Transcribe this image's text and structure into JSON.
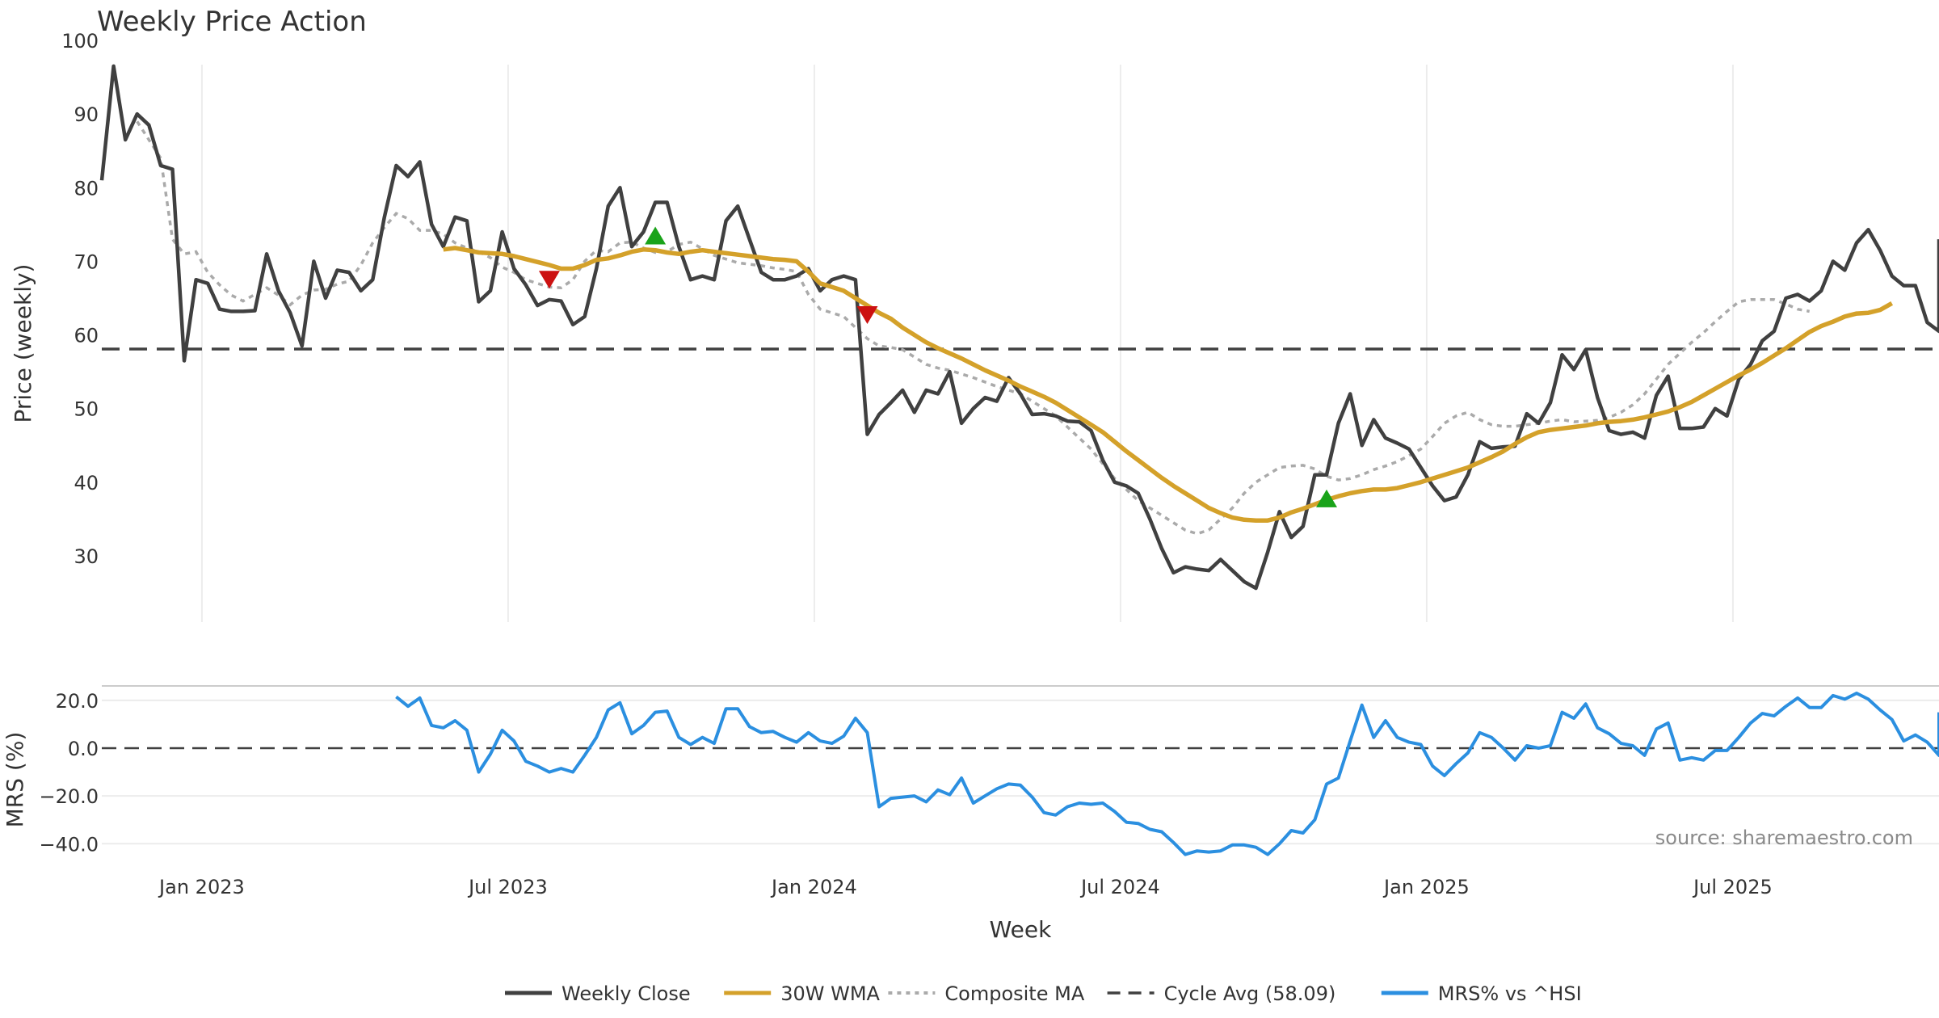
{
  "chart_data": {
    "type": "line",
    "title": "Weekly Price Action",
    "xlabel": "Week",
    "source": "source: sharemaestro.com",
    "x_ticks": [
      "Jan 2023",
      "Jul 2023",
      "Jan 2024",
      "Jul 2024",
      "Jan 2025",
      "Jul 2025"
    ],
    "x_tick_weeks": [
      7.5,
      33.5,
      59.5,
      85.5,
      111.5,
      137.5
    ],
    "x_range_weeks": [
      -1,
      155
    ],
    "price_panel": {
      "ylabel": "Price (weekly)",
      "ylim": [
        21,
        100
      ],
      "y_ticks": [
        30,
        40,
        50,
        60,
        70,
        80,
        90,
        100
      ],
      "grid": "vertical"
    },
    "mrs_panel": {
      "ylabel": "MRS (%)",
      "ylim": [
        -47,
        24
      ],
      "y_ticks": [
        "20.0",
        "0.0",
        "−20.0",
        "−40.0"
      ],
      "y_tick_values": [
        20,
        0,
        -20,
        -40
      ],
      "grid": "horizontal"
    },
    "cycle_avg": 58.09,
    "legend": {
      "position": "bottom-center",
      "items": [
        {
          "key": "close",
          "label": "Weekly Close",
          "style": "solid",
          "color": "#404040"
        },
        {
          "key": "wma",
          "label": "30W WMA",
          "style": "solid",
          "color": "#d4a12a"
        },
        {
          "key": "cma",
          "label": "Composite MA",
          "style": "dotted",
          "color": "#aaaaaa"
        },
        {
          "key": "cycle",
          "label": "Cycle Avg (58.09)",
          "style": "dashed",
          "color": "#404040"
        },
        {
          "key": "mrs",
          "label": "MRS% vs ^HSI",
          "style": "solid",
          "color": "#2b8fe0"
        }
      ]
    },
    "colors": {
      "close": "#404040",
      "wma": "#d4a12a",
      "cma": "#aaaaaa",
      "cycle": "#404040",
      "mrs": "#2b8fe0",
      "buy_signal": "#1aa31a",
      "sell_signal": "#cc1111"
    },
    "series": {
      "close": {
        "start_week": -1,
        "values": [
          81,
          96.5,
          86.5,
          90,
          88.5,
          83,
          82.5,
          56.5,
          67.5,
          67,
          63.5,
          63.2,
          63.2,
          63.3,
          71,
          66,
          63,
          58.5,
          70,
          65,
          68.8,
          68.5,
          66,
          67.5,
          76,
          83,
          81.5,
          83.5,
          75,
          72,
          76,
          75.5,
          64.5,
          66,
          74,
          69,
          66.8,
          64,
          64.8,
          64.6,
          61.4,
          62.5,
          69,
          77.5,
          80,
          72,
          74,
          78,
          78,
          72,
          67.5,
          68,
          67.5,
          75.5,
          77.5,
          73,
          68.5,
          67.5,
          67.5,
          68,
          69,
          66,
          67.5,
          68,
          67.5,
          46.5,
          49.2,
          50.8,
          52.5,
          49.5,
          52.5,
          52,
          55,
          48,
          50,
          51.5,
          51,
          54.2,
          52,
          49.2,
          49.3,
          49,
          48.3,
          48.2,
          47,
          43,
          40,
          39.5,
          38.5,
          35,
          31,
          27.7,
          28.5,
          28.2,
          28,
          29.5,
          28,
          26.5,
          25.6,
          30.5,
          36,
          32.5,
          34,
          41,
          41,
          48,
          52,
          45,
          48.5,
          46,
          45.3,
          44.5,
          42,
          39.5,
          37.5,
          38,
          41,
          45.5,
          44.6,
          44.8,
          44.9,
          49.3,
          48,
          50.8,
          57.3,
          55.3,
          58,
          51.5,
          47,
          46.5,
          46.8,
          46,
          51.8,
          54.4,
          47.3,
          47.3,
          47.5,
          50,
          49,
          54,
          56,
          59.2,
          60.5,
          65,
          65.5,
          64.6,
          66,
          70,
          68.8,
          72.5,
          74.3,
          71.5,
          68,
          66.7,
          66.7,
          61.7,
          60.5,
          73
        ]
      },
      "wma": {
        "start_week": 28,
        "values": [
          71.6,
          71.8,
          71.5,
          71.2,
          71.1,
          71.0,
          70.7,
          70.3,
          69.9,
          69.5,
          69.0,
          69.0,
          69.5,
          70.2,
          70.4,
          70.8,
          71.3,
          71.6,
          71.5,
          71.2,
          71.0,
          71.3,
          71.5,
          71.3,
          71.1,
          70.9,
          70.7,
          70.5,
          70.3,
          70.2,
          70.0,
          68.6,
          67.0,
          66.5,
          66.0,
          65.0,
          64.0,
          63.0,
          62.2,
          61.0,
          60.0,
          59.0,
          58.2,
          57.5,
          56.8,
          56.0,
          55.2,
          54.5,
          53.8,
          53.0,
          52.3,
          51.6,
          50.8,
          49.8,
          48.8,
          47.8,
          46.8,
          45.5,
          44.2,
          43.0,
          41.8,
          40.6,
          39.5,
          38.5,
          37.5,
          36.5,
          35.8,
          35.2,
          34.9,
          34.8,
          34.8,
          35.2,
          35.9,
          36.4,
          37.0,
          37.6,
          38.1,
          38.5,
          38.8,
          39.0,
          39.0,
          39.2,
          39.6,
          40.0,
          40.5,
          41.0,
          41.5,
          42.0,
          42.7,
          43.4,
          44.2,
          45.2,
          46.1,
          46.8,
          47.1,
          47.3,
          47.5,
          47.7,
          48.0,
          48.2,
          48.3,
          48.5,
          48.8,
          49.2,
          49.6,
          50.2,
          50.9,
          51.8,
          52.7,
          53.6,
          54.5,
          55.3,
          56.2,
          57.2,
          58.2,
          59.3,
          60.4,
          61.2,
          61.8,
          62.5,
          62.9,
          63.0,
          63.4,
          64.3
        ]
      },
      "cma": {
        "start_week": 2,
        "values": [
          89,
          86.5,
          84,
          73,
          71,
          71.3,
          68.5,
          66.8,
          65.4,
          64.6,
          65.5,
          66.4,
          65.4,
          64.1,
          65.4,
          66.1,
          66.2,
          66.9,
          67.3,
          69.5,
          72.5,
          74.6,
          76.5,
          75.8,
          74.2,
          74.2,
          73.7,
          72.5,
          71.8,
          71.3,
          70.5,
          69.2,
          68.5,
          67.5,
          67.0,
          66.5,
          66.4,
          67.5,
          70,
          71.5,
          71.3,
          72.5,
          72.6,
          71.8,
          71.2,
          71.3,
          72.3,
          72.6,
          71.7,
          70.8,
          70.3,
          69.8,
          69.6,
          69.4,
          69.1,
          68.9,
          68.6,
          65.5,
          63.5,
          63,
          62.5,
          61,
          59.5,
          58.5,
          58.3,
          58,
          57,
          56,
          55.5,
          55.2,
          54.7,
          54.2,
          53.6,
          53,
          52.5,
          52,
          51,
          50,
          49,
          47.5,
          46,
          44.5,
          42.5,
          40.5,
          39,
          37.5,
          36.5,
          35.5,
          34.5,
          33.5,
          33,
          33.5,
          35,
          36.5,
          38.5,
          40,
          41,
          42,
          42.2,
          42.3,
          41.8,
          40.8,
          40.3,
          40.5,
          41,
          41.7,
          42.2,
          42.8,
          43.6,
          44.5,
          46.2,
          48,
          49,
          49.5,
          48.5,
          47.8,
          47.6,
          47.6,
          47.8,
          48,
          48.3,
          48.5,
          48.2,
          48.3,
          48.4,
          48.8,
          49.5,
          50.5,
          52,
          54,
          56,
          57.5,
          59,
          60.3,
          61.8,
          63.2,
          64.5,
          64.8,
          64.8,
          64.8,
          64.2,
          63.5,
          63.2
        ]
      },
      "mrs": {
        "start_week": 24,
        "values": [
          21.5,
          17.5,
          21,
          9.5,
          8.5,
          11.5,
          7.5,
          -10,
          -2.5,
          7.5,
          3,
          -5.5,
          -7.5,
          -10,
          -8.5,
          -10,
          -3,
          4.5,
          16,
          19,
          6,
          9.5,
          15,
          15.5,
          4.5,
          1.5,
          4.5,
          2,
          16.5,
          16.5,
          9,
          6.5,
          7,
          4.5,
          2.5,
          6.5,
          3,
          2,
          5,
          12.5,
          6.5,
          -24.5,
          -21,
          -20.5,
          -20,
          -22.5,
          -17.5,
          -19.5,
          -12.5,
          -23,
          -20,
          -17,
          -15,
          -15.5,
          -20.5,
          -27,
          -28,
          -24.5,
          -23,
          -23.5,
          -23,
          -26.5,
          -31,
          -31.5,
          -34,
          -35,
          -39.5,
          -44.5,
          -43,
          -43.5,
          -43,
          -40.5,
          -40.5,
          -41.5,
          -44.5,
          -40,
          -34.5,
          -35.5,
          -30,
          -15,
          -12.5,
          3,
          18,
          4.5,
          11.5,
          4.5,
          2.5,
          1.5,
          -7.5,
          -11.5,
          -6.5,
          -2,
          6.5,
          4.5,
          0,
          -5,
          1,
          0,
          1,
          15,
          12.5,
          18.5,
          8.5,
          6,
          2,
          1,
          -3,
          8,
          10.5,
          -5,
          -4,
          -5,
          -1,
          -1,
          4.5,
          10.5,
          14.5,
          13.5,
          17.5,
          21,
          17,
          17,
          22,
          20.5,
          23,
          20.5,
          16,
          12,
          3,
          5.5,
          2.5,
          -3,
          15
        ]
      }
    },
    "signals": [
      {
        "type": "sell",
        "week": 37,
        "value": 67.5
      },
      {
        "type": "buy",
        "week": 46,
        "value": 73.5
      },
      {
        "type": "sell",
        "week": 64,
        "value": 62.7
      },
      {
        "type": "buy",
        "week": 103,
        "value": 37.8
      }
    ]
  }
}
